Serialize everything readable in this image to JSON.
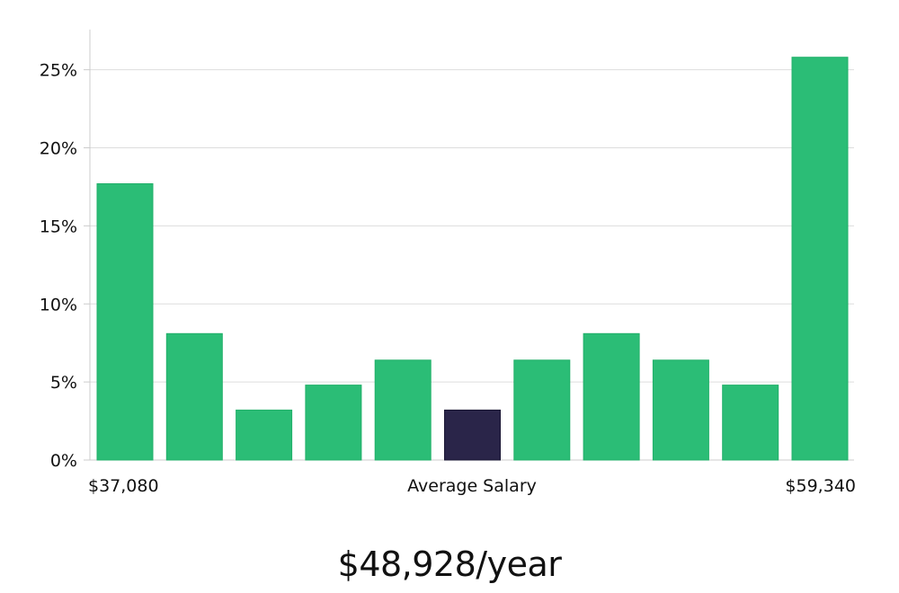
{
  "chart_data": {
    "type": "bar",
    "title": "",
    "xlabel": "Average Salary",
    "ylabel": "",
    "x_min_label": "$37,080",
    "x_max_label": "$59,340",
    "ylim": [
      0,
      27
    ],
    "yticks": [
      0,
      5,
      10,
      15,
      20,
      25
    ],
    "ytick_labels": [
      "0%",
      "5%",
      "10%",
      "15%",
      "20%",
      "25%"
    ],
    "grid": true,
    "highlight_index": 5,
    "colors": {
      "bar": "#2bbd76",
      "highlight": "#2a2549",
      "grid": "#dddddd",
      "axis": "#cccccc"
    },
    "values": [
      17.7,
      8.1,
      3.2,
      4.8,
      6.4,
      3.2,
      6.4,
      8.1,
      6.4,
      4.8,
      25.8
    ]
  },
  "caption": {
    "salary": "$48,928/year"
  }
}
